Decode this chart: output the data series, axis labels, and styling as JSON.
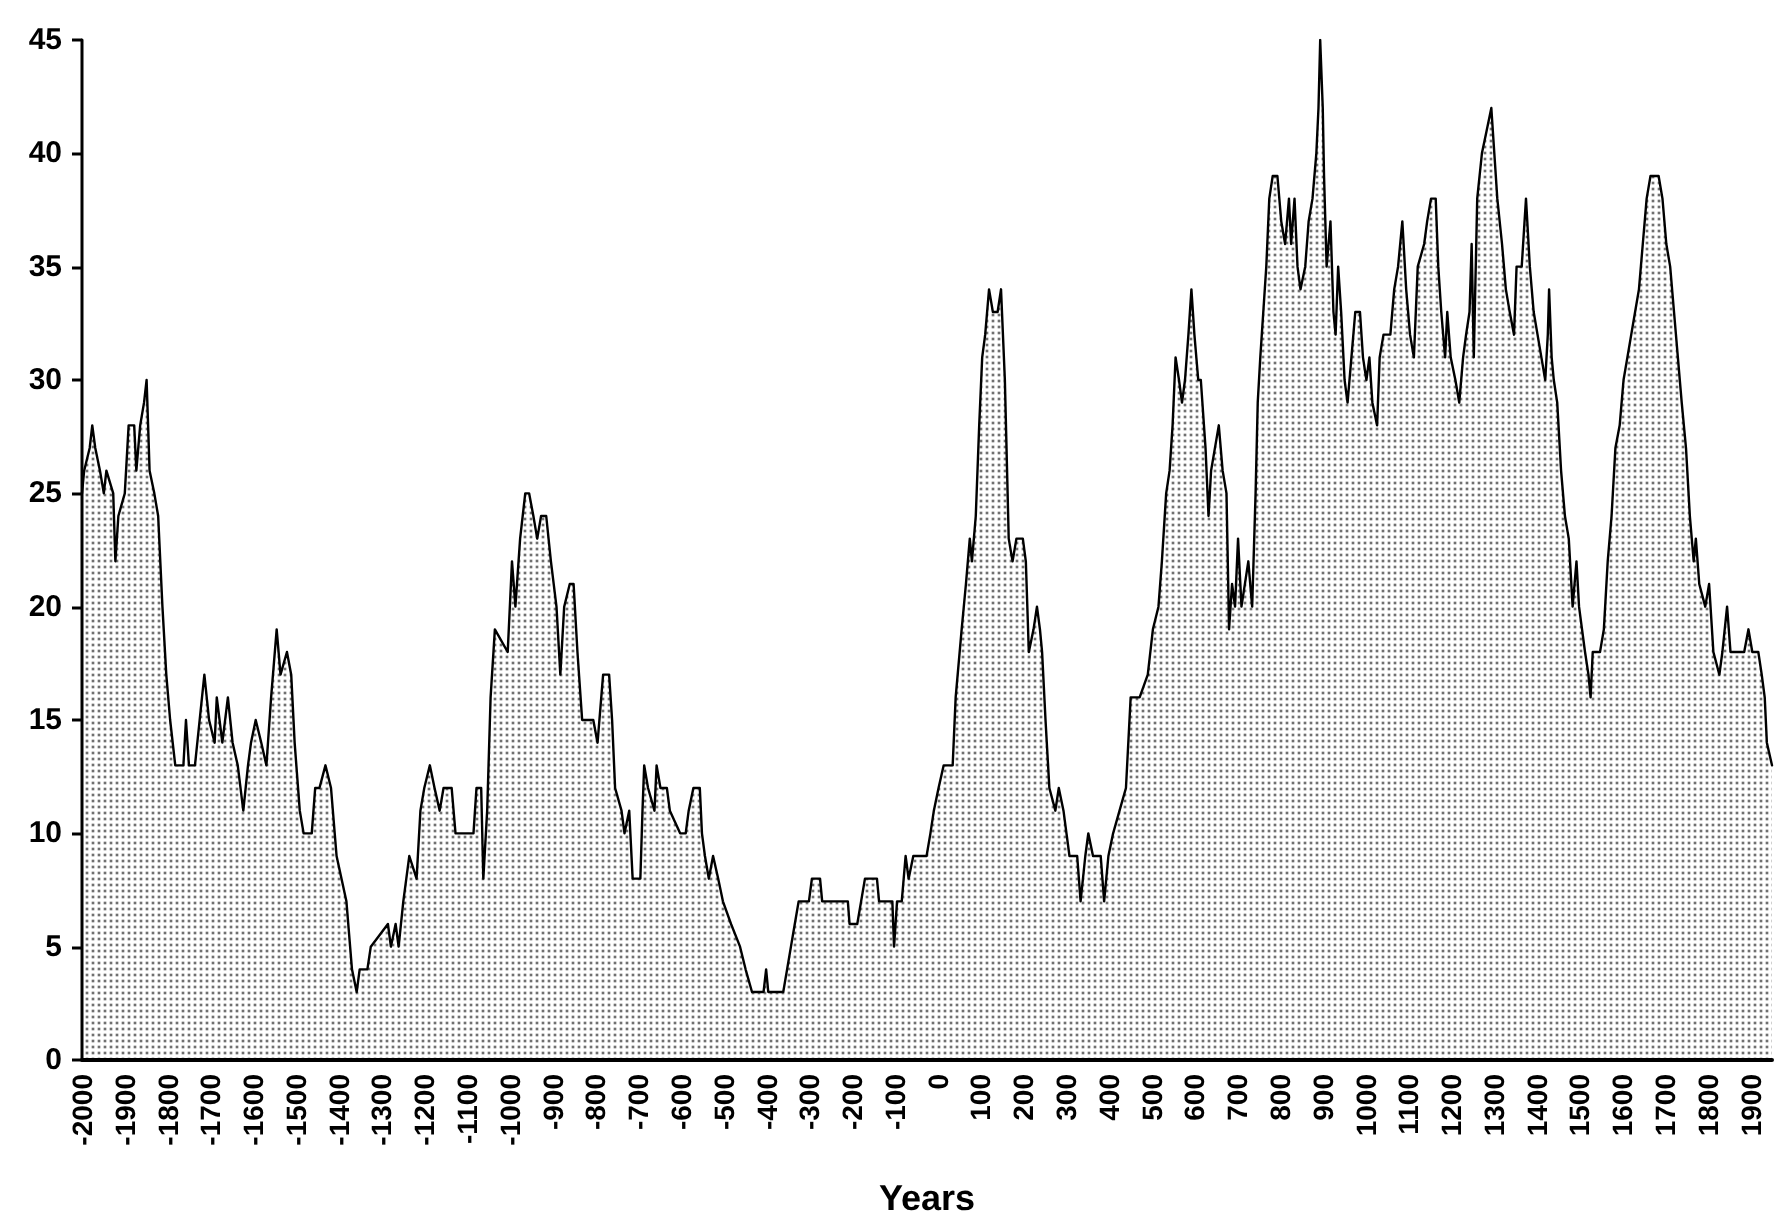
{
  "chart_data": {
    "type": "area",
    "xlabel": "Years",
    "color": "#000000",
    "line_style": "solid",
    "xlim": [
      -2000,
      1950
    ],
    "xticks": [
      -2000,
      -1900,
      -1800,
      -1700,
      -1600,
      -1500,
      -1400,
      -1300,
      -1200,
      -1100,
      -1000,
      -900,
      -800,
      -700,
      -600,
      -500,
      -400,
      -300,
      -200,
      -100,
      0,
      100,
      200,
      300,
      400,
      500,
      600,
      700,
      800,
      900,
      1000,
      1100,
      1200,
      1300,
      1400,
      1500,
      1600,
      1700,
      1800,
      1900
    ],
    "ylim": [
      0,
      45
    ],
    "yticks": [
      0,
      5,
      10,
      15,
      20,
      25,
      30,
      35,
      40,
      45
    ],
    "x": [
      -2000,
      -1995,
      -1982,
      -1976,
      -1969,
      -1958,
      -1949,
      -1943,
      -1927,
      -1922,
      -1915,
      -1900,
      -1891,
      -1878,
      -1873,
      -1864,
      -1855,
      -1849,
      -1842,
      -1831,
      -1822,
      -1812,
      -1803,
      -1794,
      -1782,
      -1763,
      -1757,
      -1750,
      -1736,
      -1725,
      -1714,
      -1703,
      -1690,
      -1685,
      -1672,
      -1659,
      -1648,
      -1636,
      -1623,
      -1612,
      -1605,
      -1594,
      -1581,
      -1569,
      -1558,
      -1545,
      -1536,
      -1521,
      -1511,
      -1503,
      -1491,
      -1482,
      -1463,
      -1455,
      -1445,
      -1431,
      -1418,
      -1405,
      -1382,
      -1369,
      -1358,
      -1351,
      -1333,
      -1325,
      -1285,
      -1278,
      -1267,
      -1260,
      -1249,
      -1242,
      -1235,
      -1218,
      -1209,
      -1200,
      -1187,
      -1176,
      -1164,
      -1155,
      -1136,
      -1127,
      -1085,
      -1078,
      -1067,
      -1062,
      -1053,
      -1045,
      -1035,
      -1005,
      -995,
      -987,
      -976,
      -964,
      -955,
      -945,
      -936,
      -927,
      -915,
      -904,
      -891,
      -882,
      -873,
      -860,
      -851,
      -842,
      -831,
      -805,
      -795,
      -782,
      -768,
      -761,
      -754,
      -739,
      -732,
      -721,
      -713,
      -695,
      -690,
      -686,
      -677,
      -662,
      -657,
      -648,
      -633,
      -626,
      -602,
      -589,
      -582,
      -571,
      -556,
      -551,
      -544,
      -535,
      -525,
      -513,
      -502,
      -483,
      -462,
      -449,
      -434,
      -407,
      -401,
      -396,
      -361,
      -352,
      -343,
      -334,
      -325,
      -301,
      -294,
      -275,
      -270,
      -210,
      -206,
      -188,
      -179,
      -170,
      -142,
      -137,
      -106,
      -102,
      -95,
      -84,
      -75,
      -68,
      -57,
      -26,
      -17,
      -9,
      2,
      14,
      35,
      42,
      56,
      66,
      75,
      80,
      89,
      97,
      104,
      111,
      120,
      129,
      140,
      148,
      157,
      166,
      175,
      184,
      199,
      206,
      213,
      224,
      232,
      239,
      244,
      252,
      261,
      275,
      283,
      294,
      301,
      308,
      326,
      334,
      345,
      352,
      363,
      381,
      389,
      399,
      410,
      425,
      440,
      451,
      472,
      491,
      503,
      516,
      524,
      534,
      542,
      549,
      556,
      564,
      571,
      578,
      586,
      593,
      600,
      609,
      615,
      626,
      633,
      639,
      657,
      666,
      675,
      681,
      688,
      695,
      702,
      710,
      726,
      735,
      743,
      748,
      754,
      761,
      768,
      775,
      783,
      794,
      803,
      812,
      821,
      826,
      834,
      841,
      848,
      859,
      867,
      876,
      885,
      890,
      894,
      900,
      903,
      909,
      918,
      925,
      930,
      936,
      943,
      951,
      958,
      967,
      976,
      987,
      994,
      1002,
      1009,
      1016,
      1027,
      1033,
      1042,
      1058,
      1067,
      1076,
      1086,
      1095,
      1104,
      1113,
      1122,
      1137,
      1144,
      1153,
      1164,
      1170,
      1177,
      1186,
      1191,
      1199,
      1210,
      1219,
      1228,
      1235,
      1243,
      1248,
      1253,
      1261,
      1272,
      1283,
      1294,
      1301,
      1308,
      1319,
      1328,
      1337,
      1347,
      1353,
      1365,
      1375,
      1384,
      1393,
      1402,
      1411,
      1420,
      1426,
      1429,
      1435,
      1440,
      1448,
      1457,
      1466,
      1475,
      1484,
      1493,
      1499,
      1506,
      1513,
      1521,
      1526,
      1531,
      1548,
      1557,
      1566,
      1575,
      1584,
      1594,
      1603,
      1612,
      1621,
      1630,
      1639,
      1648,
      1657,
      1666,
      1685,
      1694,
      1703,
      1712,
      1721,
      1730,
      1739,
      1749,
      1758,
      1767,
      1772,
      1780,
      1794,
      1803,
      1813,
      1827,
      1834,
      1845,
      1853,
      1885,
      1895,
      1904,
      1918,
      1926,
      1933,
      1938,
      1950
    ],
    "values": [
      25,
      26,
      27,
      28,
      27,
      26,
      25,
      26,
      25,
      22,
      24,
      25,
      28,
      28,
      26,
      28,
      29,
      30,
      26,
      25,
      24,
      20,
      17,
      15,
      13,
      13,
      15,
      13,
      13,
      15,
      17,
      15,
      14,
      16,
      14,
      16,
      14,
      13,
      11,
      13,
      14,
      15,
      14,
      13,
      16,
      19,
      17,
      18,
      17,
      14,
      11,
      10,
      10,
      12,
      12,
      13,
      12,
      9,
      7,
      4,
      3,
      4,
      4,
      5,
      6,
      5,
      6,
      5,
      7,
      8,
      9,
      8,
      11,
      12,
      13,
      12,
      11,
      12,
      12,
      10,
      10,
      12,
      12,
      8,
      11,
      16,
      19,
      18,
      22,
      20,
      23,
      25,
      25,
      24,
      23,
      24,
      24,
      22,
      20,
      17,
      20,
      21,
      21,
      18,
      15,
      15,
      14,
      17,
      17,
      15,
      12,
      11,
      10,
      11,
      8,
      8,
      11,
      13,
      12,
      11,
      13,
      12,
      12,
      11,
      10,
      10,
      11,
      12,
      12,
      10,
      9,
      8,
      9,
      8,
      7,
      6,
      5,
      4,
      3,
      3,
      4,
      3,
      3,
      4,
      5,
      6,
      7,
      7,
      8,
      8,
      7,
      7,
      6,
      6,
      7,
      8,
      8,
      7,
      7,
      5,
      7,
      7,
      9,
      8,
      9,
      9,
      10,
      11,
      12,
      13,
      13,
      16,
      19,
      21,
      23,
      22,
      24,
      28,
      31,
      32,
      34,
      33,
      33,
      34,
      30,
      23,
      22,
      23,
      23,
      22,
      18,
      19,
      20,
      19,
      18,
      15,
      12,
      11,
      12,
      11,
      10,
      9,
      9,
      7,
      9,
      10,
      9,
      9,
      7,
      9,
      10,
      11,
      12,
      16,
      16,
      17,
      19,
      20,
      22,
      25,
      26,
      28,
      31,
      30,
      29,
      30,
      32,
      34,
      32,
      30,
      30,
      27,
      24,
      26,
      28,
      26,
      25,
      19,
      21,
      20,
      23,
      20,
      22,
      20,
      25,
      29,
      31,
      33,
      35,
      38,
      39,
      39,
      37,
      36,
      38,
      36,
      38,
      35,
      34,
      35,
      37,
      38,
      40,
      42,
      45,
      42,
      39,
      35,
      37,
      33,
      32,
      35,
      33,
      30,
      29,
      31,
      33,
      33,
      31,
      30,
      31,
      29,
      28,
      31,
      32,
      32,
      34,
      35,
      37,
      34,
      32,
      31,
      35,
      36,
      37,
      38,
      38,
      35,
      33,
      31,
      33,
      31,
      30,
      29,
      31,
      32,
      33,
      36,
      31,
      38,
      40,
      41,
      42,
      40,
      38,
      36,
      34,
      33,
      32,
      35,
      35,
      38,
      35,
      33,
      32,
      31,
      30,
      32,
      34,
      31,
      30,
      29,
      26,
      24,
      23,
      20,
      22,
      20,
      19,
      18,
      17,
      16,
      18,
      18,
      19,
      22,
      24,
      27,
      28,
      30,
      31,
      32,
      33,
      34,
      36,
      38,
      39,
      39,
      38,
      36,
      35,
      33,
      31,
      29,
      27,
      24,
      22,
      23,
      21,
      20,
      21,
      18,
      17,
      18,
      20,
      18,
      18,
      19,
      18,
      18,
      17,
      16,
      14,
      13
    ]
  }
}
